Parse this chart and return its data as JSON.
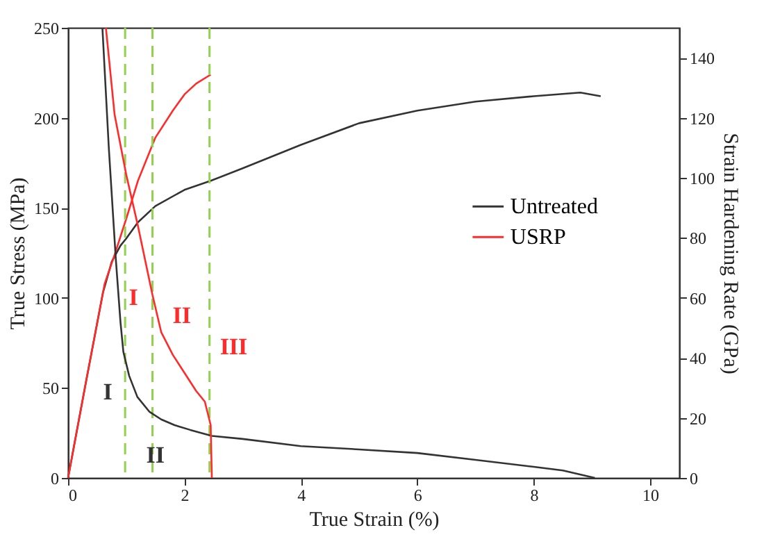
{
  "chart_data": {
    "type": "line",
    "xlabel": "True Strain (%)",
    "ylabel": "True Stress (MPa)",
    "y2label": "Strain Hardening Rate (GPa)",
    "xlim": [
      0,
      10.5
    ],
    "xticks": [
      0,
      2,
      4,
      6,
      8,
      10
    ],
    "ylim": [
      0,
      250
    ],
    "yticks": [
      0,
      50,
      100,
      150,
      200,
      250
    ],
    "y2lim": [
      0,
      150
    ],
    "y2ticks": [
      0,
      20,
      40,
      60,
      80,
      100,
      120,
      140
    ],
    "series": [
      {
        "name": "Untreated",
        "color": "#333333",
        "x": [
          0,
          0.3,
          0.6,
          0.75,
          0.9,
          1.0,
          1.2,
          1.5,
          2.0,
          2.45,
          3.0,
          4.0,
          5.0,
          6.0,
          7.0,
          8.0,
          8.8,
          9.15
        ],
        "values": [
          0,
          52,
          103,
          120,
          129,
          133,
          142,
          151,
          160,
          165,
          172,
          185,
          197,
          204,
          209,
          212,
          214,
          212
        ]
      },
      {
        "name": "USRP",
        "color": "#ff2a2a",
        "x": [
          0,
          0.3,
          0.63,
          0.8,
          1.0,
          1.2,
          1.5,
          1.8,
          2.0,
          2.2,
          2.4,
          2.45
        ],
        "values": [
          0,
          52,
          108,
          124,
          144,
          165,
          189,
          204,
          213,
          219,
          223,
          224
        ]
      },
      {
        "axis": "y2",
        "color": "#333333",
        "x": [
          0.59,
          0.7,
          0.82,
          0.9,
          0.95,
          1.05,
          1.19,
          1.4,
          1.6,
          1.83,
          2.1,
          2.47,
          3.0,
          4.0,
          5.0,
          6.0,
          7.0,
          8.0,
          8.5,
          9.05
        ],
        "values": [
          150,
          110,
          73,
          52,
          42,
          34,
          27,
          22,
          19.5,
          17.6,
          16,
          14,
          13,
          10.6,
          9.5,
          8.3,
          6,
          3.7,
          2.5,
          0
        ]
      },
      {
        "axis": "y2",
        "color": "#ff2a2a",
        "x": [
          0.65,
          0.8,
          1.0,
          1.2,
          1.45,
          1.6,
          1.8,
          2.0,
          2.2,
          2.35,
          2.45,
          2.47
        ],
        "values": [
          150,
          121,
          101,
          84,
          61,
          48.6,
          41,
          35,
          29,
          25.4,
          17.6,
          0
        ]
      }
    ],
    "ref_lines": [
      {
        "axis": "x",
        "value": 0.98,
        "color": "#92d050",
        "line_style": "dashed"
      },
      {
        "axis": "x",
        "value": 1.45,
        "color": "#92d050",
        "line_style": "dashed"
      },
      {
        "axis": "x",
        "value": 2.43,
        "color": "#92d050",
        "line_style": "dashed"
      }
    ],
    "annotations": [
      "I",
      "II",
      "III",
      "I",
      "II"
    ],
    "legend": "right",
    "grid": false
  }
}
